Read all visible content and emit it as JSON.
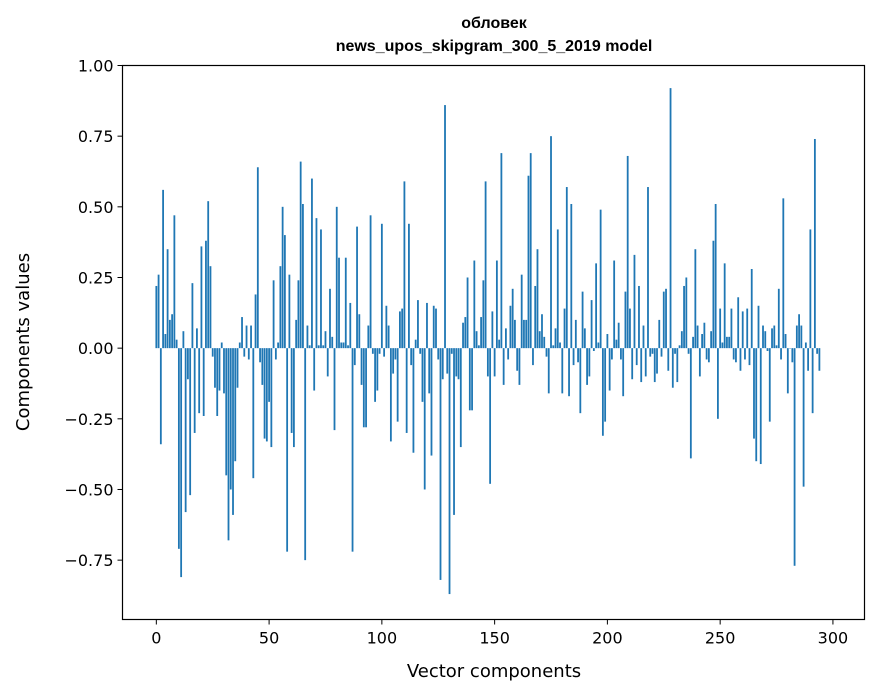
{
  "chart_data": {
    "type": "bar",
    "title": "обловек",
    "subtitle": "news_upos_skipgram_300_5_2019 model",
    "xlabel": "Vector components",
    "ylabel": "Components values",
    "xlim": [
      -15,
      314
    ],
    "ylim": [
      -0.96,
      1.0
    ],
    "xticks": [
      0,
      50,
      100,
      150,
      200,
      250,
      300
    ],
    "xtick_labels": [
      "0",
      "50",
      "100",
      "150",
      "200",
      "250",
      "300"
    ],
    "yticks": [
      1.0,
      0.75,
      0.5,
      0.25,
      0.0,
      -0.25,
      -0.5,
      -0.75
    ],
    "ytick_labels": [
      "1.00",
      "0.75",
      "0.50",
      "0.25",
      "0.00",
      "−0.25",
      "−0.50",
      "−0.75"
    ],
    "bar_color": "#1f77b4",
    "grid": false,
    "values": [
      0.22,
      0.26,
      -0.34,
      0.56,
      0.05,
      0.35,
      0.1,
      0.12,
      0.47,
      0.03,
      -0.71,
      -0.81,
      0.06,
      -0.58,
      -0.11,
      -0.52,
      0.23,
      -0.3,
      0.07,
      -0.23,
      0.36,
      -0.24,
      0.38,
      0.52,
      0.29,
      -0.03,
      -0.14,
      -0.24,
      -0.15,
      0.02,
      -0.16,
      -0.45,
      -0.68,
      -0.5,
      -0.59,
      -0.4,
      -0.14,
      0.02,
      0.11,
      -0.03,
      0.08,
      -0.04,
      0.08,
      -0.46,
      0.19,
      0.64,
      -0.05,
      -0.13,
      -0.32,
      -0.33,
      -0.19,
      -0.35,
      0.24,
      -0.04,
      0.02,
      0.29,
      0.5,
      0.4,
      -0.72,
      0.26,
      -0.3,
      -0.35,
      0.1,
      0.24,
      0.66,
      0.51,
      -0.75,
      0.08,
      0.01,
      0.6,
      -0.15,
      0.46,
      0.01,
      0.42,
      0.01,
      0.06,
      -0.1,
      0.21,
      0.04,
      -0.29,
      0.5,
      0.32,
      0.02,
      0.02,
      0.32,
      0.01,
      0.16,
      -0.72,
      -0.06,
      0.43,
      0.12,
      -0.13,
      -0.28,
      -0.28,
      0.08,
      0.47,
      -0.02,
      -0.19,
      -0.15,
      -0.02,
      0.44,
      -0.03,
      0.15,
      0.08,
      -0.33,
      -0.09,
      -0.04,
      -0.26,
      0.13,
      0.14,
      0.59,
      -0.3,
      0.44,
      -0.06,
      -0.37,
      0.03,
      0.17,
      -0.02,
      -0.19,
      -0.5,
      0.16,
      -0.16,
      -0.38,
      0.15,
      0.14,
      -0.04,
      -0.82,
      -0.11,
      0.86,
      -0.09,
      -0.87,
      -0.02,
      -0.59,
      -0.1,
      -0.11,
      -0.35,
      0.09,
      0.11,
      0.25,
      -0.22,
      -0.22,
      0.31,
      0.06,
      0.01,
      0.11,
      0.24,
      0.59,
      -0.1,
      -0.48,
      0.13,
      -0.1,
      0.31,
      0.03,
      0.69,
      -0.13,
      0.07,
      -0.04,
      0.15,
      0.21,
      0.1,
      -0.08,
      -0.13,
      0.26,
      0.1,
      0.1,
      0.61,
      0.69,
      -0.06,
      0.22,
      0.35,
      0.06,
      0.12,
      0.04,
      -0.03,
      -0.16,
      0.75,
      0.01,
      0.07,
      0.42,
      0.02,
      -0.16,
      0.14,
      0.57,
      -0.17,
      0.51,
      -0.06,
      0.1,
      -0.05,
      -0.23,
      0.2,
      0.07,
      -0.13,
      -0.1,
      0.17,
      -0.01,
      0.3,
      0.02,
      0.49,
      -0.31,
      -0.26,
      0.05,
      -0.15,
      -0.04,
      0.31,
      0.03,
      0.09,
      -0.04,
      -0.17,
      0.2,
      0.68,
      0.14,
      -0.11,
      0.33,
      -0.06,
      0.22,
      -0.12,
      0.08,
      -0.1,
      0.57,
      -0.03,
      -0.02,
      -0.12,
      -0.09,
      0.1,
      -0.03,
      0.2,
      0.21,
      -0.08,
      0.92,
      -0.14,
      -0.02,
      -0.12,
      0.01,
      0.06,
      0.22,
      0.25,
      -0.02,
      -0.39,
      0.04,
      0.35,
      0.08,
      -0.1,
      0.05,
      0.09,
      -0.04,
      -0.05,
      0.06,
      0.38,
      0.51,
      -0.25,
      0.14,
      0.02,
      0.3,
      0.04,
      0.04,
      0.14,
      -0.04,
      -0.05,
      0.18,
      -0.08,
      0.13,
      -0.04,
      0.14,
      -0.06,
      0.28,
      -0.32,
      -0.4,
      0.15,
      -0.41,
      0.08,
      0.06,
      -0.01,
      -0.26,
      0.07,
      0.08,
      0.01,
      0.21,
      -0.04,
      0.53,
      0.05,
      -0.16,
      0.0,
      -0.05,
      -0.77,
      0.08,
      0.12,
      0.08,
      -0.49,
      0.02,
      -0.08,
      0.42,
      -0.23,
      0.74,
      -0.02,
      -0.08
    ]
  }
}
